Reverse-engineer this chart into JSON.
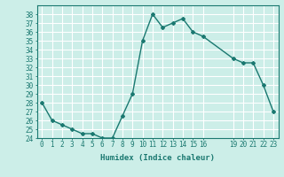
{
  "x": [
    0,
    1,
    2,
    3,
    4,
    5,
    6,
    7,
    8,
    9,
    10,
    11,
    12,
    13,
    14,
    15,
    16,
    19,
    20,
    21,
    22,
    23
  ],
  "y": [
    28,
    26,
    25.5,
    25,
    24.5,
    24.5,
    24,
    24,
    26.5,
    29,
    35,
    38,
    36.5,
    37,
    37.5,
    36,
    35.5,
    33,
    32.5,
    32.5,
    30,
    27
  ],
  "line_color": "#1a7870",
  "marker": "D",
  "marker_size": 2,
  "bg_color": "#cceee8",
  "grid_color": "#ffffff",
  "xlabel": "Humidex (Indice chaleur)",
  "ylim": [
    24,
    39
  ],
  "yticks": [
    24,
    25,
    26,
    27,
    28,
    29,
    30,
    31,
    32,
    33,
    34,
    35,
    36,
    37,
    38
  ],
  "xticks": [
    0,
    1,
    2,
    3,
    4,
    5,
    6,
    7,
    8,
    9,
    10,
    11,
    12,
    13,
    14,
    15,
    16,
    19,
    20,
    21,
    22,
    23
  ],
  "title_color": "#1a7870",
  "font_size": 5.5,
  "label_font_size": 6.5
}
